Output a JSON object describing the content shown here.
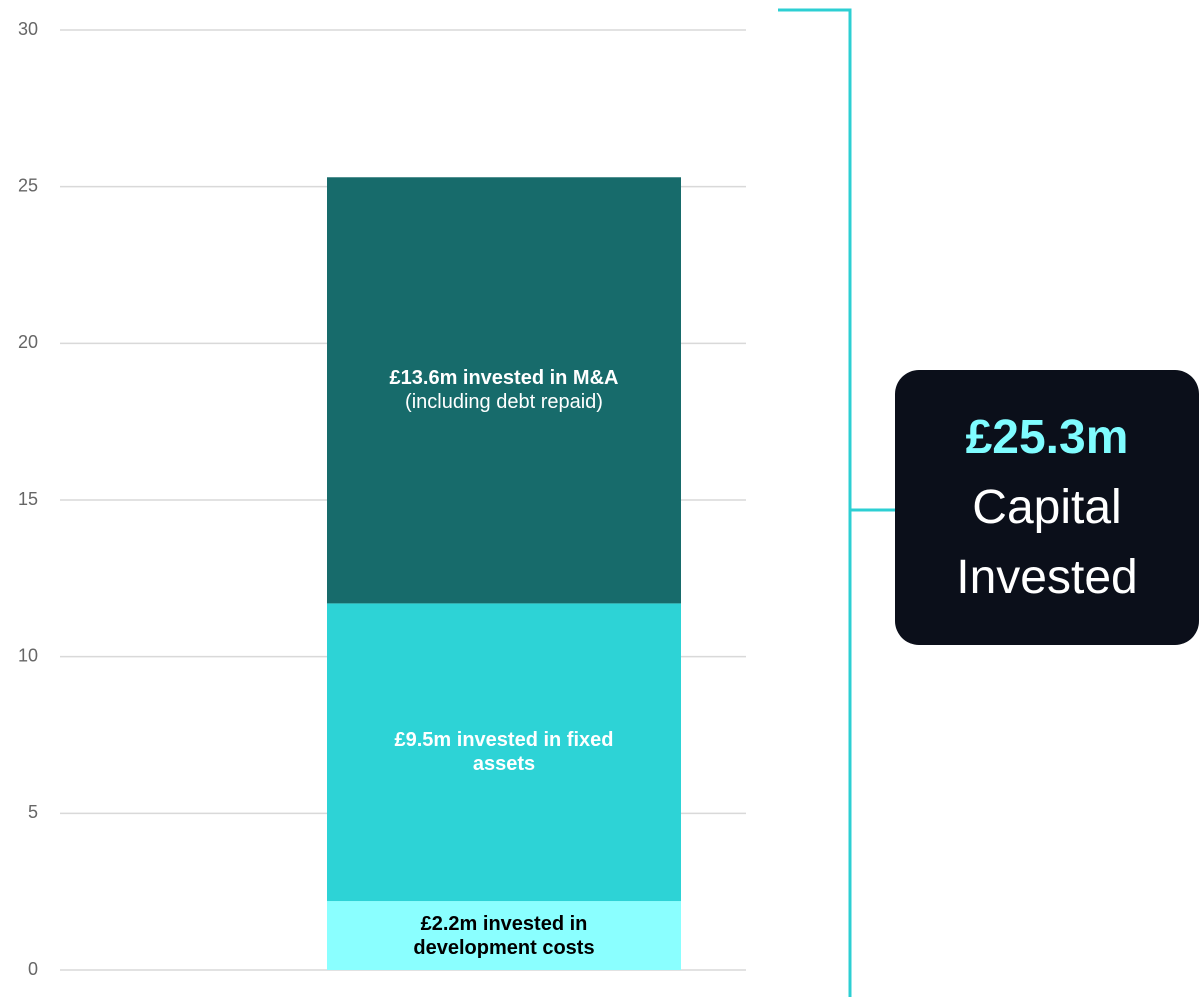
{
  "chart_data": {
    "type": "stacked_bar",
    "categories": [
      null
    ],
    "series": [
      {
        "color": "#8affff",
        "text_color": "#000000",
        "values": [
          2.2
        ],
        "value_labels": [
          "£2.2m invested in development costs"
        ]
      },
      {
        "color": "#2dd3d6",
        "text_color": "#ffffff",
        "values": [
          9.5
        ],
        "value_labels": [
          "£9.5m invested in fixed assets"
        ]
      },
      {
        "color": "#176b6b",
        "text_color": "#ffffff",
        "values": [
          13.6
        ],
        "value_labels": [
          "£13.6m invested in M&A"
        ],
        "note": "(including debt repaid)"
      }
    ],
    "ylim": [
      0,
      30
    ],
    "yticks": [
      0,
      5,
      10,
      15,
      20,
      25,
      30
    ],
    "grid": true,
    "callout": {
      "value_label": "£25.3m",
      "text": "Capital Invested",
      "color": "#2ccfd3"
    }
  }
}
